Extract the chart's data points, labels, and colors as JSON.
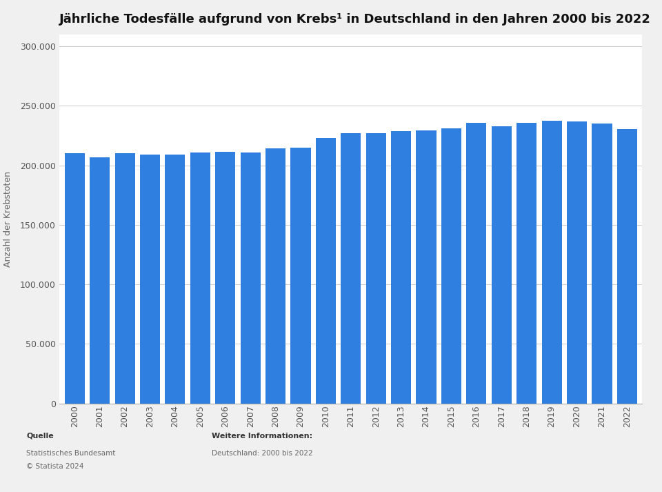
{
  "title": "Jährliche Todesfälle aufgrund von Krebs¹ in Deutschland in den Jahren 2000 bis 2022",
  "ylabel": "Anzahl der Krebstoten",
  "years": [
    2000,
    2001,
    2002,
    2003,
    2004,
    2005,
    2006,
    2007,
    2008,
    2009,
    2010,
    2011,
    2012,
    2013,
    2014,
    2015,
    2016,
    2017,
    2018,
    2019,
    2020,
    2021,
    2022
  ],
  "values": [
    210000,
    207000,
    210000,
    209000,
    209000,
    211000,
    211500,
    211000,
    214500,
    215000,
    223000,
    227000,
    227000,
    229000,
    229500,
    231000,
    236000,
    233000,
    236000,
    237500,
    237000,
    235000,
    230500
  ],
  "bar_color": "#2f7fe0",
  "background_color": "#f0f0f0",
  "plot_bg_color": "#ffffff",
  "ylim": [
    0,
    310000
  ],
  "yticks": [
    0,
    50000,
    100000,
    150000,
    200000,
    250000,
    300000
  ],
  "grid_color": "#cccccc",
  "title_fontsize": 13,
  "axis_label_fontsize": 9,
  "tick_fontsize": 9,
  "footer_source_label": "Quelle",
  "footer_source": "Statistisches Bundesamt",
  "footer_copyright": "© Statista 2024",
  "footer_info_label": "Weitere Informationen:",
  "footer_info": "Deutschland: 2000 bis 2022"
}
